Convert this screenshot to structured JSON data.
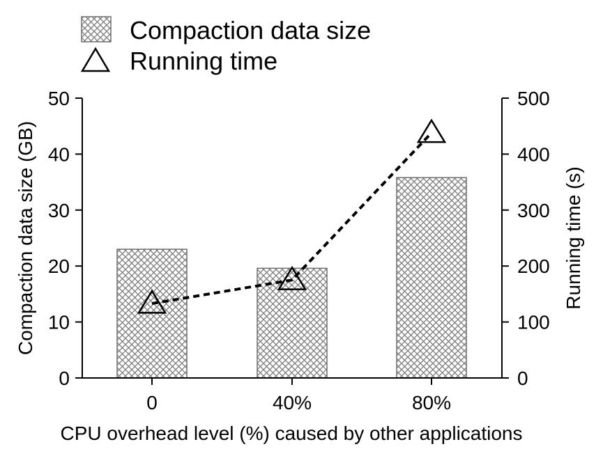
{
  "chart_data": {
    "type": "bar+line",
    "categories": [
      "0",
      "40%",
      "80%"
    ],
    "series": [
      {
        "name": "Compaction data size",
        "kind": "bar",
        "axis": "left",
        "values": [
          23,
          19.6,
          35.8
        ],
        "pattern": "crosshatch"
      },
      {
        "name": "Running time",
        "kind": "line",
        "axis": "right",
        "values": [
          133,
          175,
          438
        ],
        "marker": "triangle-open",
        "line_style": "dashed"
      }
    ],
    "xlabel": "CPU overhead level (%) caused by other applications",
    "ylabel_left": "Compaction data size (GB)",
    "ylabel_right": "Running time (s)",
    "ylim_left": [
      0,
      50
    ],
    "ylim_right": [
      0,
      500
    ],
    "yticks_left": [
      "0",
      "10",
      "20",
      "30",
      "40",
      "50"
    ],
    "yticks_right": [
      "0",
      "100",
      "200",
      "300",
      "400",
      "500"
    ],
    "legend": {
      "placement": "top",
      "entries": [
        "Compaction data size",
        "Running time"
      ]
    },
    "grid": false
  },
  "colors": {
    "bar_fill": "#ffffff",
    "bar_hatch": "#7a7a7a",
    "bar_edge": "#6e6e6e",
    "line": "#000000",
    "axis": "#000000"
  }
}
